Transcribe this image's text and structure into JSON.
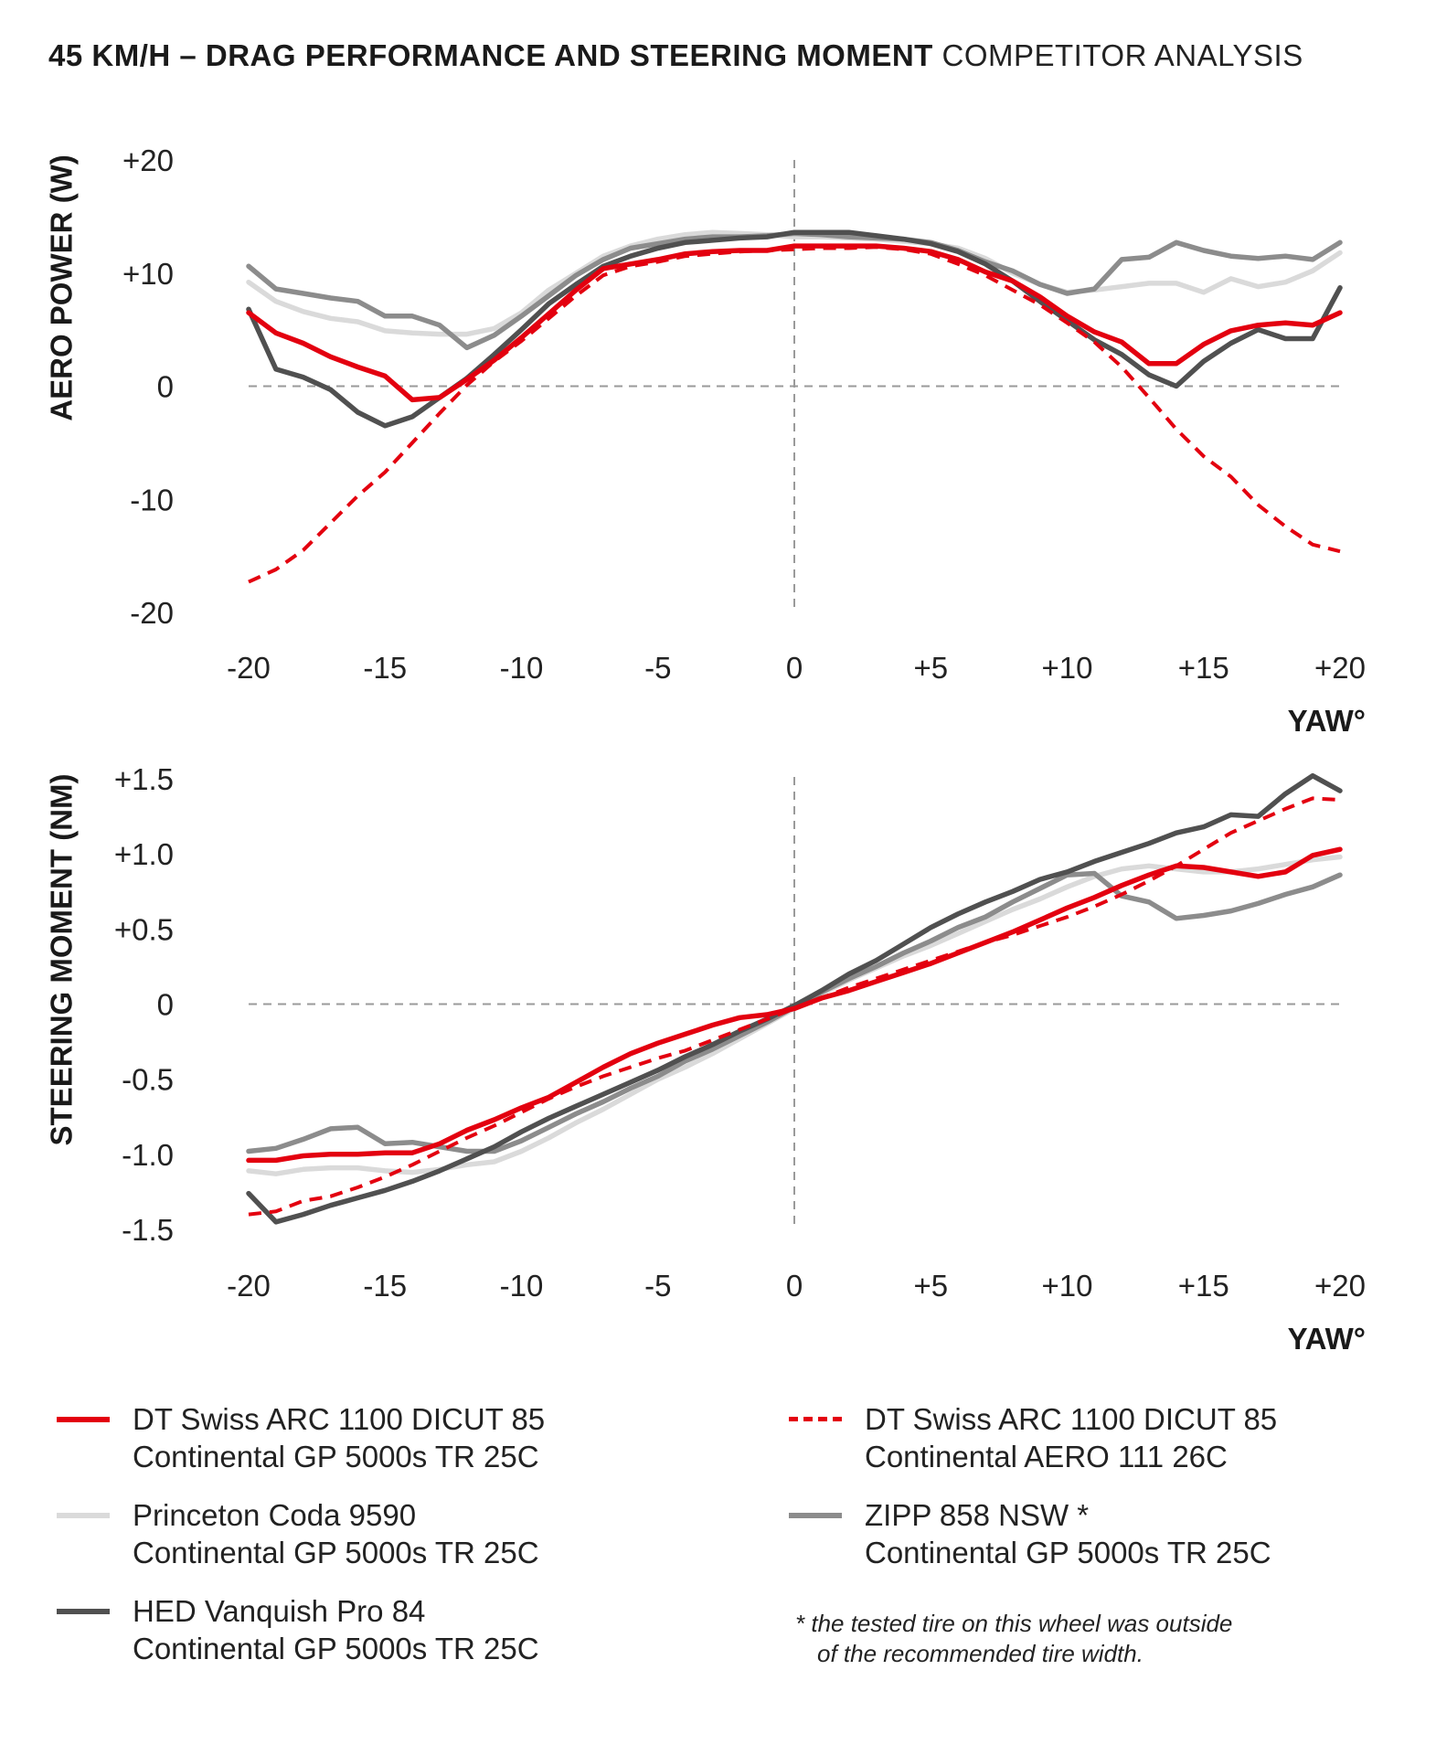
{
  "title": {
    "bold": "45 KM/H – DRAG PERFORMANCE AND STEERING MOMENT",
    "light": "COMPETITOR ANALYSIS"
  },
  "colors": {
    "red": "#e3000f",
    "light_gray": "#dadada",
    "mid_gray": "#8c8c8c",
    "dark_gray": "#505050",
    "zero_line": "#9a9a9a"
  },
  "legend": [
    {
      "id": "dt_gp5000",
      "line1": "DT Swiss ARC 1100 DICUT 85",
      "line2": "Continental GP 5000s TR 25C",
      "color": "#e3000f",
      "style": "solid"
    },
    {
      "id": "dt_aero111",
      "line1": "DT Swiss ARC 1100 DICUT 85",
      "line2": "Continental AERO 111 26C",
      "color": "#e3000f",
      "style": "dashed"
    },
    {
      "id": "princeton",
      "line1": "Princeton Coda 9590",
      "line2": "Continental GP 5000s TR 25C",
      "color": "#dadada",
      "style": "solid"
    },
    {
      "id": "zipp",
      "line1": "ZIPP 858 NSW *",
      "line2": "Continental GP 5000s TR 25C",
      "color": "#8c8c8c",
      "style": "solid"
    },
    {
      "id": "hed",
      "line1": "HED Vanquish Pro 84",
      "line2": "Continental GP 5000s TR 25C",
      "color": "#505050",
      "style": "solid"
    }
  ],
  "footnote": {
    "line1": "* the tested tire on this wheel was outside",
    "line2": "of the recommended tire width."
  },
  "chart_data": [
    {
      "type": "line",
      "ylabel": "AERO POWER (W)",
      "xlabel": "YAW°",
      "xlim": [
        -20,
        20
      ],
      "ylim": [
        -20,
        20
      ],
      "x_ticks": [
        -20,
        -15,
        -10,
        -5,
        0,
        5,
        10,
        15,
        20
      ],
      "x_tick_labels": [
        "-20",
        "-15",
        "-10",
        "-5",
        "0",
        "+5",
        "+10",
        "+15",
        "+20"
      ],
      "y_ticks": [
        20,
        10,
        0,
        -10,
        -20
      ],
      "y_tick_labels": [
        "+20",
        "+10",
        "0",
        "-10",
        "-20"
      ],
      "x": [
        -20,
        -19,
        -18,
        -17,
        -16,
        -15,
        -14,
        -13,
        -12,
        -11,
        -10,
        -9,
        -8,
        -7,
        -6,
        -5,
        -4,
        -3,
        -2,
        -1,
        0,
        1,
        2,
        3,
        4,
        5,
        6,
        7,
        8,
        9,
        10,
        11,
        12,
        13,
        14,
        15,
        16,
        17,
        18,
        19,
        20
      ],
      "series": [
        {
          "id": "princeton",
          "values": [
            9.2,
            7.5,
            6.6,
            6.0,
            5.7,
            4.9,
            4.7,
            4.6,
            4.6,
            5.1,
            6.5,
            8.5,
            10.0,
            11.5,
            12.4,
            13.0,
            13.4,
            13.6,
            13.5,
            13.4,
            13.2,
            13.2,
            13.1,
            13.0,
            12.8,
            12.6,
            12.2,
            11.3,
            10.0,
            9.0,
            8.3,
            8.5,
            8.8,
            9.1,
            9.1,
            8.3,
            9.5,
            8.8,
            9.2,
            10.2,
            11.8
          ]
        },
        {
          "id": "zipp",
          "values": [
            10.6,
            8.6,
            8.2,
            7.8,
            7.5,
            6.2,
            6.2,
            5.4,
            3.4,
            4.5,
            6.2,
            8.0,
            9.8,
            11.2,
            12.2,
            12.6,
            13.0,
            13.2,
            13.2,
            13.3,
            13.5,
            13.4,
            13.2,
            13.1,
            13.0,
            12.7,
            12.0,
            11.0,
            10.2,
            9.0,
            8.2,
            8.6,
            11.2,
            11.4,
            12.7,
            12.0,
            11.5,
            11.3,
            11.5,
            11.2,
            12.7
          ]
        },
        {
          "id": "hed",
          "values": [
            6.8,
            1.5,
            0.8,
            -0.3,
            -2.3,
            -3.5,
            -2.7,
            -1.0,
            0.7,
            2.8,
            5.0,
            7.3,
            9.0,
            10.6,
            11.5,
            12.2,
            12.7,
            12.9,
            13.1,
            13.2,
            13.6,
            13.6,
            13.6,
            13.3,
            13.0,
            12.6,
            11.9,
            10.8,
            9.3,
            7.5,
            5.8,
            4.1,
            2.8,
            1.0,
            0.0,
            2.2,
            3.8,
            5.0,
            4.2,
            4.2,
            8.7
          ]
        },
        {
          "id": "dt_gp5000",
          "values": [
            6.5,
            4.7,
            3.8,
            2.6,
            1.7,
            0.9,
            -1.2,
            -1.0,
            0.6,
            2.3,
            4.3,
            6.4,
            8.5,
            10.4,
            10.8,
            11.2,
            11.7,
            11.9,
            12.0,
            12.0,
            12.4,
            12.4,
            12.4,
            12.4,
            12.2,
            11.9,
            11.2,
            10.1,
            9.3,
            7.9,
            6.2,
            4.8,
            3.9,
            2.0,
            2.0,
            3.7,
            4.9,
            5.4,
            5.6,
            5.4,
            6.5
          ]
        },
        {
          "id": "dt_aero111",
          "values": [
            -17.3,
            -16.2,
            -14.5,
            -12.1,
            -9.7,
            -7.6,
            -5.0,
            -2.4,
            0.1,
            2.2,
            4.0,
            6.0,
            8.0,
            9.8,
            10.6,
            11.0,
            11.5,
            11.7,
            11.9,
            12.0,
            12.1,
            12.2,
            12.2,
            12.3,
            12.1,
            11.7,
            10.8,
            9.8,
            8.5,
            7.2,
            5.6,
            3.9,
            1.7,
            -1.0,
            -3.8,
            -6.2,
            -8.0,
            -10.5,
            -12.4,
            -14.0,
            -14.6
          ]
        }
      ]
    },
    {
      "type": "line",
      "ylabel": "STEERING MOMENT (NM)",
      "xlabel": "YAW°",
      "xlim": [
        -20,
        20
      ],
      "ylim": [
        -1.5,
        1.5
      ],
      "x_ticks": [
        -20,
        -15,
        -10,
        -5,
        0,
        5,
        10,
        15,
        20
      ],
      "x_tick_labels": [
        "-20",
        "-15",
        "-10",
        "-5",
        "0",
        "+5",
        "+10",
        "+15",
        "+20"
      ],
      "y_ticks": [
        1.5,
        1.0,
        0.5,
        0,
        -0.5,
        -1.0,
        -1.5
      ],
      "y_tick_labels": [
        "+1.5",
        "+1.0",
        "+0.5",
        "0",
        "-0.5",
        "-1.0",
        "-1.5"
      ],
      "x": [
        -20,
        -19,
        -18,
        -17,
        -16,
        -15,
        -14,
        -13,
        -12,
        -11,
        -10,
        -9,
        -8,
        -7,
        -6,
        -5,
        -4,
        -3,
        -2,
        -1,
        0,
        1,
        2,
        3,
        4,
        5,
        6,
        7,
        8,
        9,
        10,
        11,
        12,
        13,
        14,
        15,
        16,
        17,
        18,
        19,
        20
      ],
      "series": [
        {
          "id": "princeton",
          "values": [
            -1.11,
            -1.13,
            -1.1,
            -1.09,
            -1.09,
            -1.11,
            -1.12,
            -1.1,
            -1.07,
            -1.05,
            -0.98,
            -0.89,
            -0.79,
            -0.7,
            -0.6,
            -0.5,
            -0.42,
            -0.33,
            -0.23,
            -0.13,
            -0.03,
            0.07,
            0.16,
            0.24,
            0.32,
            0.39,
            0.47,
            0.55,
            0.63,
            0.7,
            0.78,
            0.85,
            0.9,
            0.92,
            0.9,
            0.88,
            0.88,
            0.9,
            0.93,
            0.96,
            0.98
          ]
        },
        {
          "id": "zipp",
          "values": [
            -0.98,
            -0.96,
            -0.9,
            -0.83,
            -0.82,
            -0.93,
            -0.92,
            -0.95,
            -0.98,
            -0.98,
            -0.91,
            -0.82,
            -0.73,
            -0.65,
            -0.56,
            -0.48,
            -0.38,
            -0.3,
            -0.21,
            -0.12,
            -0.02,
            0.08,
            0.17,
            0.25,
            0.34,
            0.42,
            0.51,
            0.58,
            0.68,
            0.77,
            0.86,
            0.87,
            0.72,
            0.68,
            0.57,
            0.59,
            0.62,
            0.67,
            0.73,
            0.78,
            0.86
          ]
        },
        {
          "id": "hed",
          "values": [
            -1.26,
            -1.45,
            -1.4,
            -1.34,
            -1.29,
            -1.24,
            -1.18,
            -1.11,
            -1.03,
            -0.95,
            -0.85,
            -0.76,
            -0.68,
            -0.6,
            -0.52,
            -0.44,
            -0.35,
            -0.27,
            -0.18,
            -0.1,
            -0.01,
            0.09,
            0.2,
            0.29,
            0.4,
            0.51,
            0.6,
            0.68,
            0.75,
            0.83,
            0.88,
            0.95,
            1.01,
            1.07,
            1.14,
            1.18,
            1.26,
            1.25,
            1.4,
            1.52,
            1.42
          ]
        },
        {
          "id": "dt_gp5000",
          "values": [
            -1.04,
            -1.04,
            -1.01,
            -1.0,
            -1.0,
            -0.99,
            -0.99,
            -0.93,
            -0.84,
            -0.77,
            -0.69,
            -0.62,
            -0.52,
            -0.42,
            -0.33,
            -0.26,
            -0.2,
            -0.14,
            -0.09,
            -0.07,
            -0.03,
            0.04,
            0.09,
            0.15,
            0.21,
            0.27,
            0.34,
            0.41,
            0.48,
            0.56,
            0.64,
            0.71,
            0.79,
            0.86,
            0.92,
            0.91,
            0.88,
            0.85,
            0.88,
            0.99,
            1.03
          ]
        },
        {
          "id": "dt_aero111",
          "values": [
            -1.4,
            -1.38,
            -1.31,
            -1.28,
            -1.22,
            -1.15,
            -1.07,
            -0.98,
            -0.89,
            -0.81,
            -0.72,
            -0.63,
            -0.55,
            -0.48,
            -0.42,
            -0.36,
            -0.31,
            -0.24,
            -0.17,
            -0.1,
            -0.03,
            0.04,
            0.11,
            0.17,
            0.23,
            0.29,
            0.35,
            0.41,
            0.46,
            0.52,
            0.58,
            0.65,
            0.73,
            0.82,
            0.92,
            1.03,
            1.14,
            1.22,
            1.3,
            1.37,
            1.36
          ]
        }
      ]
    }
  ]
}
